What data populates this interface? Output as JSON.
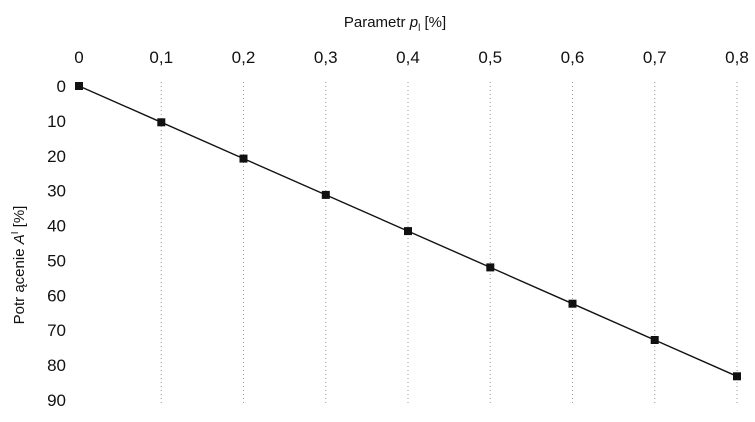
{
  "chart_data": {
    "type": "line",
    "title": "",
    "xlabel": {
      "prefix": "Parametr ",
      "symbol": "p",
      "subscript": "l",
      "suffix": " [%]"
    },
    "ylabel": {
      "prefix": "Potr ącenie ",
      "symbol": "A",
      "superscript": "I",
      "suffix": " [%]"
    },
    "x_axis_position": "top",
    "y_axis_inverted": true,
    "xlim": [
      0,
      0.8
    ],
    "ylim": [
      0,
      90
    ],
    "x_tick_labels": [
      "0",
      "0,1",
      "0,2",
      "0,3",
      "0,4",
      "0,5",
      "0,6",
      "0,7",
      "0,8"
    ],
    "y_tick_labels": [
      "0",
      "10",
      "20",
      "30",
      "40",
      "50",
      "60",
      "70",
      "80",
      "90"
    ],
    "grid": "vertical dotted",
    "series": [
      {
        "x": [
          0,
          0.1,
          0.2,
          0.3,
          0.4,
          0.5,
          0.6,
          0.7,
          0.8
        ],
        "y": [
          0,
          10.4,
          20.8,
          31.2,
          41.6,
          52,
          62.4,
          72.8,
          83.2
        ],
        "marker": "square",
        "color": "#111111"
      }
    ]
  }
}
